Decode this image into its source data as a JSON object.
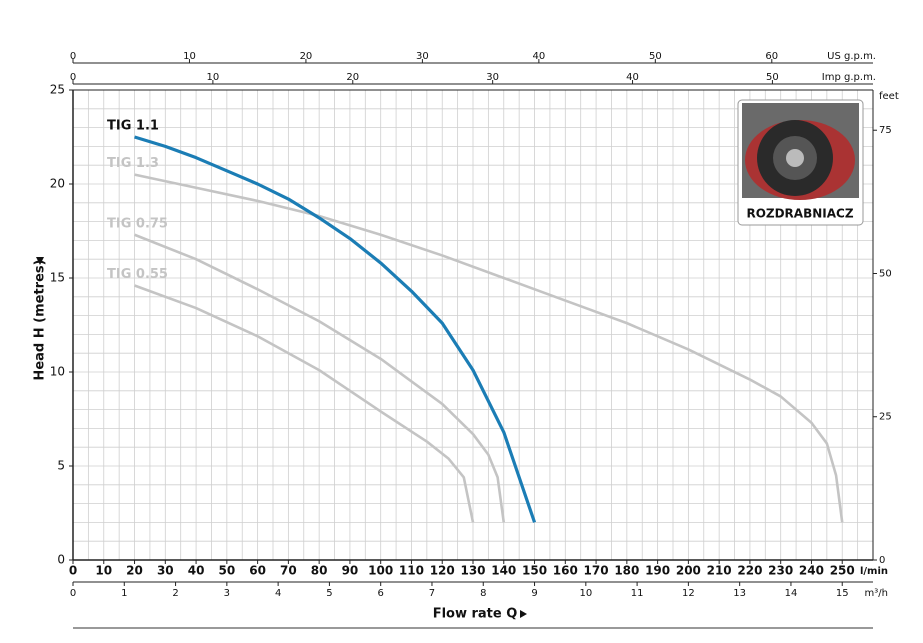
{
  "chart_data": {
    "type": "line",
    "x_label": "Flow rate Q",
    "y_label": "Head H (metres)",
    "x_unit": "l/min",
    "xlim": [
      0,
      260
    ],
    "xticks": [
      0,
      10,
      20,
      30,
      40,
      50,
      60,
      70,
      80,
      90,
      100,
      110,
      120,
      130,
      140,
      150,
      160,
      170,
      180,
      190,
      200,
      210,
      220,
      230,
      240,
      250
    ],
    "x2_unit": "m³/h",
    "x2lim": [
      0,
      15.6
    ],
    "x2ticks": [
      0,
      1,
      2,
      3,
      4,
      5,
      6,
      7,
      8,
      9,
      10,
      11,
      12,
      13,
      14,
      15
    ],
    "x3_unit": "Imp g.p.m.",
    "x3lim": [
      0,
      57.19
    ],
    "x3ticks": [
      0,
      10,
      20,
      30,
      40,
      50
    ],
    "x4_unit": "US g.p.m.",
    "x4lim": [
      0,
      68.69
    ],
    "x4ticks": [
      0,
      10,
      20,
      30,
      40,
      50,
      60
    ],
    "ylim": [
      0,
      25
    ],
    "yticks": [
      0,
      5,
      10,
      15,
      20,
      25
    ],
    "y2_unit": "feet",
    "y2lim": [
      0,
      82.02
    ],
    "y2ticks": [
      0,
      25,
      50,
      75
    ],
    "grid": true,
    "xgrid": [
      0,
      5,
      10,
      15,
      20,
      25,
      30,
      35,
      40,
      45,
      50,
      55,
      60,
      65,
      70,
      75,
      80,
      85,
      90,
      95,
      100,
      105,
      110,
      115,
      120,
      125,
      130,
      135,
      140,
      145,
      150,
      155,
      160,
      165,
      170,
      175,
      180,
      185,
      190,
      195,
      200,
      205,
      210,
      215,
      220,
      225,
      230,
      235,
      240,
      245,
      250,
      255,
      260
    ],
    "ygrid": [
      0,
      1,
      2,
      3,
      4,
      5,
      6,
      7,
      8,
      9,
      10,
      11,
      12,
      13,
      14,
      15,
      16,
      17,
      18,
      19,
      20,
      21,
      22,
      23,
      24,
      25
    ],
    "inset_label": "ROZDRABNIACZ",
    "series": [
      {
        "name": "TIG 1.1",
        "color": "#1b7db5",
        "label_color": "#111111",
        "x": [
          20,
          30,
          40,
          50,
          60,
          70,
          80,
          90,
          100,
          110,
          120,
          130,
          140,
          150
        ],
        "values": [
          22.5,
          22.0,
          21.4,
          20.7,
          20.0,
          19.2,
          18.2,
          17.1,
          15.8,
          14.3,
          12.6,
          10.1,
          6.8,
          2.0
        ]
      },
      {
        "name": "TIG 1.3",
        "color": "#c4c4c4",
        "label_color": "#c4c4c4",
        "x": [
          20,
          40,
          60,
          80,
          100,
          120,
          140,
          160,
          180,
          200,
          220,
          230,
          240,
          245,
          248,
          250
        ],
        "values": [
          20.5,
          19.8,
          19.1,
          18.3,
          17.3,
          16.2,
          15.0,
          13.8,
          12.6,
          11.2,
          9.6,
          8.7,
          7.3,
          6.2,
          4.5,
          2.0
        ]
      },
      {
        "name": "TIG 0.75",
        "color": "#c4c4c4",
        "label_color": "#c4c4c4",
        "x": [
          20,
          40,
          60,
          80,
          100,
          120,
          130,
          135,
          138,
          140
        ],
        "values": [
          17.3,
          16.0,
          14.4,
          12.7,
          10.7,
          8.3,
          6.7,
          5.6,
          4.4,
          2.0
        ]
      },
      {
        "name": "TIG 0.55",
        "color": "#c4c4c4",
        "label_color": "#c4c4c4",
        "x": [
          20,
          40,
          60,
          80,
          100,
          115,
          122,
          127,
          130
        ],
        "values": [
          14.6,
          13.4,
          11.9,
          10.1,
          7.9,
          6.3,
          5.4,
          4.4,
          2.0
        ]
      }
    ]
  }
}
